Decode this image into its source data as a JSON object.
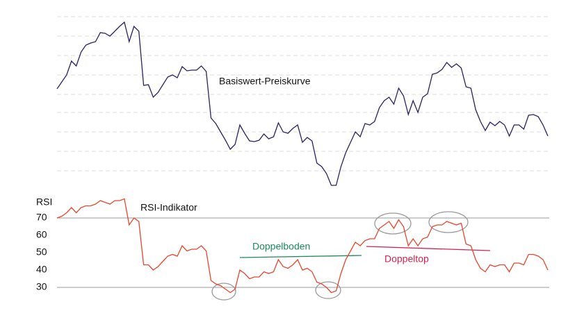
{
  "chart_data": [
    {
      "type": "line",
      "annotation": "Basiswert-Preiskurve",
      "color": "#2b2160",
      "ylim": [
        0,
        300
      ],
      "values": [
        172,
        182,
        192,
        212,
        205,
        225,
        235,
        238,
        240,
        253,
        252,
        248,
        255,
        262,
        268,
        240,
        262,
        255,
        177,
        178,
        160,
        167,
        178,
        189,
        192,
        188,
        204,
        198,
        199,
        199,
        205,
        197,
        130,
        122,
        110,
        98,
        85,
        92,
        120,
        108,
        97,
        96,
        98,
        107,
        100,
        103,
        123,
        110,
        108,
        115,
        120,
        95,
        102,
        97,
        65,
        60,
        50,
        33,
        33,
        60,
        80,
        95,
        110,
        103,
        122,
        120,
        125,
        145,
        155,
        160,
        150,
        173,
        162,
        135,
        155,
        138,
        160,
        165,
        193,
        195,
        200,
        210,
        203,
        208,
        202,
        175,
        173,
        142,
        125,
        112,
        124,
        119,
        125,
        120,
        104,
        120,
        120,
        114,
        134,
        135,
        132,
        120,
        104
      ]
    },
    {
      "type": "line",
      "ylabel": "RSI",
      "color": "#e8452c",
      "ylim": [
        24,
        84
      ],
      "yticks": [
        30,
        40,
        50,
        60,
        70
      ],
      "ref_lines": [
        70,
        30
      ],
      "annotations": [
        "RSI-Indikator",
        "Doppelboden",
        "Doppeltop"
      ],
      "values": [
        70,
        71,
        73,
        76,
        73,
        76,
        77,
        77,
        78,
        80,
        79,
        78,
        80,
        80,
        81,
        66,
        70,
        68,
        43,
        43,
        40,
        42,
        45,
        48,
        49,
        48,
        54,
        51,
        52,
        52,
        54,
        51,
        34,
        32,
        31,
        29,
        27,
        29,
        40,
        38,
        35,
        36,
        36,
        39,
        38,
        39,
        46,
        42,
        41,
        43,
        46,
        40,
        41,
        39,
        33,
        32,
        30,
        27,
        28,
        38,
        46,
        51,
        56,
        54,
        57,
        58,
        58,
        64,
        66,
        68,
        64,
        69,
        65,
        54,
        58,
        54,
        58,
        59,
        65,
        66,
        66,
        68,
        67,
        66,
        67,
        55,
        54,
        46,
        41,
        39,
        43,
        42,
        43,
        43,
        39,
        44,
        44,
        43,
        49,
        49,
        48,
        46,
        40
      ]
    }
  ]
}
